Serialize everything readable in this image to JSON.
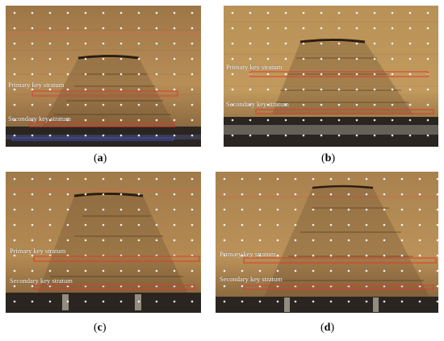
{
  "panels": [
    {
      "caption": "(a)",
      "letter": "a",
      "labels": {
        "primary": "Primary key stratum",
        "secondary": "Secondary key stratum"
      }
    },
    {
      "caption": "(b)",
      "letter": "b",
      "labels": {
        "primary": "Primary key stratum",
        "secondary": "Secondary key stratum"
      }
    },
    {
      "caption": "(c)",
      "letter": "c",
      "labels": {
        "primary": "Primary key stratum",
        "secondary": "Secondary key stratum"
      }
    },
    {
      "caption": "(d)",
      "letter": "d",
      "labels": {
        "primary": "Primary key stratum",
        "secondary": "Secondary key stratum"
      }
    }
  ],
  "colors": {
    "model_material": "#b48a52",
    "marker_box": "#e03a2a",
    "marker_dot": "#ffffff",
    "label_text": "#ffffff"
  }
}
